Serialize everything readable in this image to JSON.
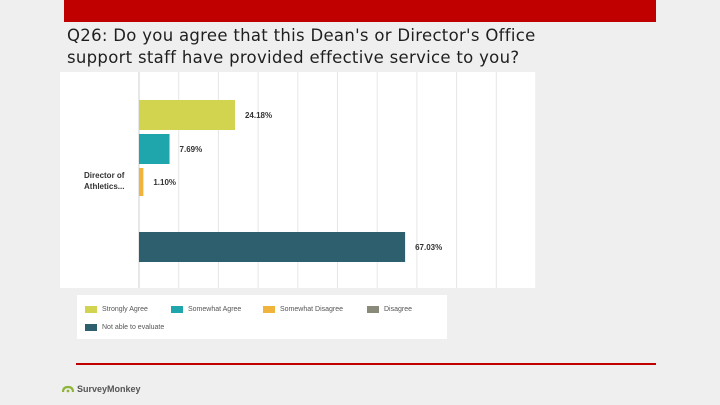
{
  "slide": {
    "title": "Q26: Do you agree that this Dean's or Director's Office support staff have provided effective service to you?",
    "accent_color": "#c00000",
    "logo_text": "SurveyMonkey"
  },
  "chart_data": {
    "type": "bar",
    "orientation": "horizontal",
    "categories": [
      "Director of Athletics..."
    ],
    "category_label_lines": [
      "Director of",
      "Athletics..."
    ],
    "series": [
      {
        "name": "Strongly Agree",
        "values": [
          24.18
        ],
        "label": "24.18%",
        "color": "#d2d34f"
      },
      {
        "name": "Somewhat Agree",
        "values": [
          7.69
        ],
        "label": "7.69%",
        "color": "#1fa6ad"
      },
      {
        "name": "Somewhat Disagree",
        "values": [
          1.1
        ],
        "label": "1.10%",
        "color": "#f0b43c"
      },
      {
        "name": "Disagree",
        "values": [
          0
        ],
        "label": "",
        "color": "#8a8a7a"
      },
      {
        "name": "Not able to evaluate",
        "values": [
          67.03
        ],
        "label": "67.03%",
        "color": "#2e5f6e"
      }
    ],
    "xlim": [
      0,
      100
    ],
    "grid": true,
    "legend_position": "bottom"
  }
}
